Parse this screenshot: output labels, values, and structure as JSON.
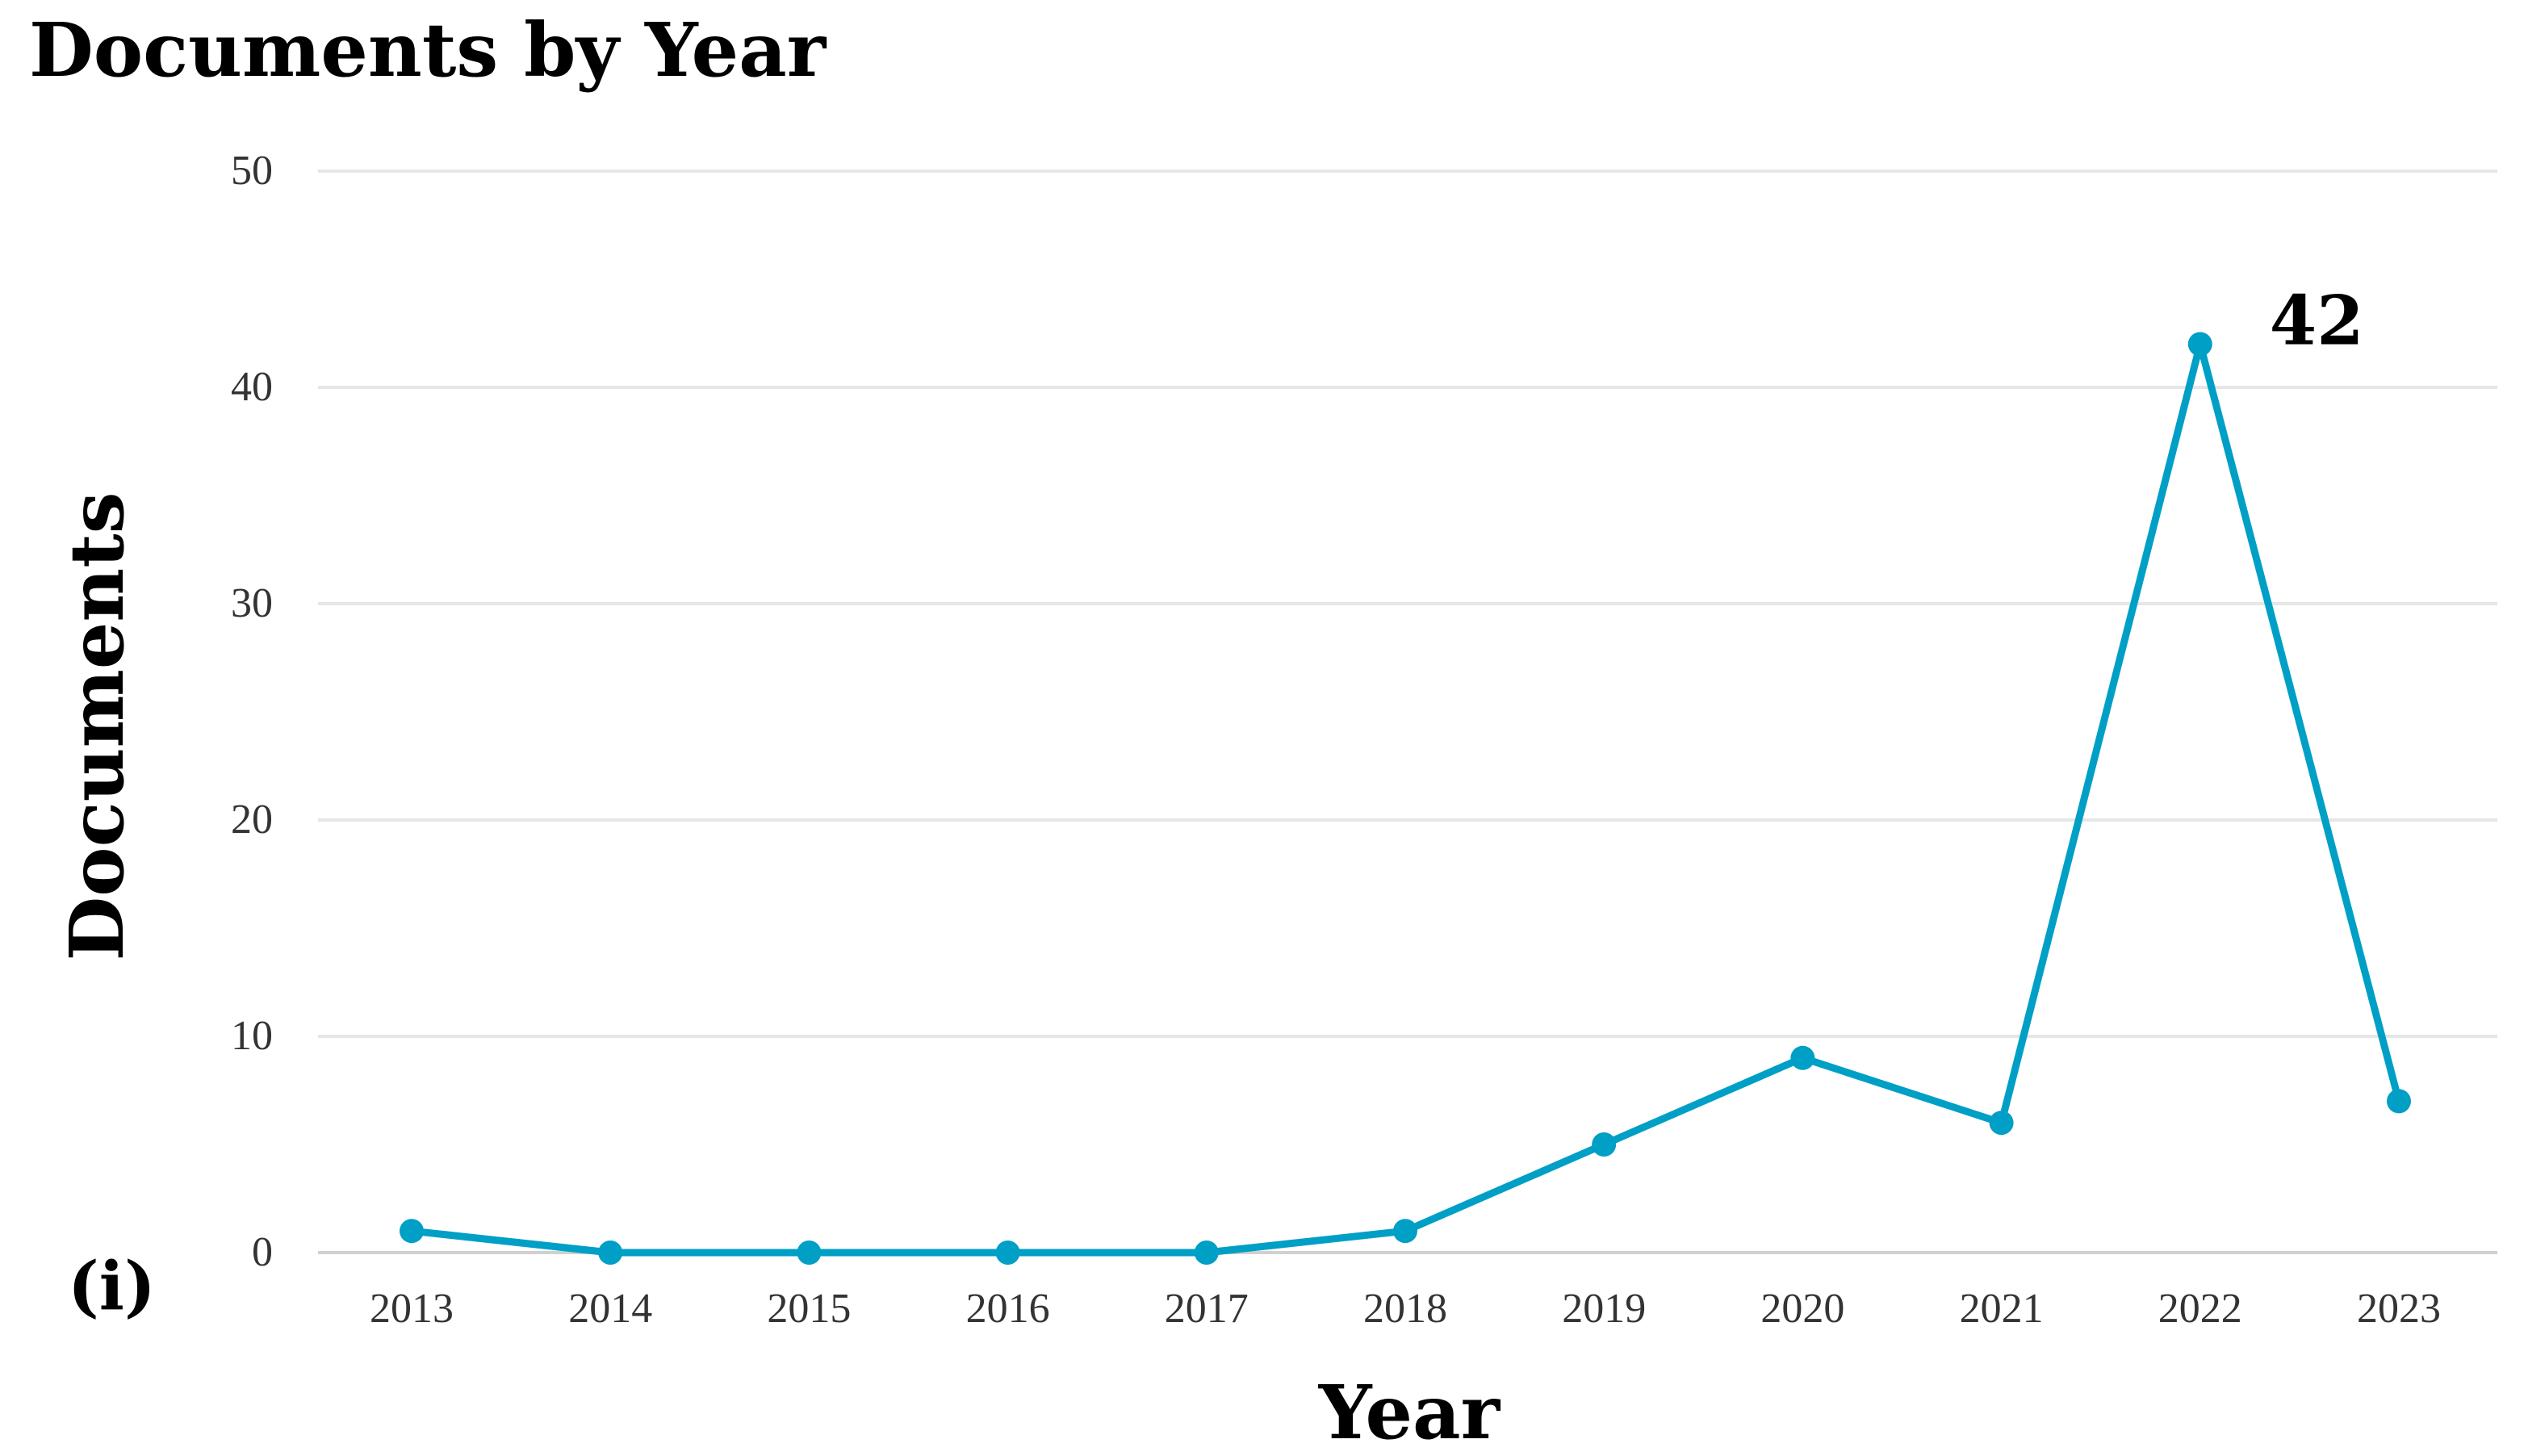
{
  "chart_data": {
    "type": "line",
    "title": "Documents by Year",
    "xlabel": "Year",
    "ylabel": "Documents",
    "panel_label": "(i)",
    "categories": [
      "2013",
      "2014",
      "2015",
      "2016",
      "2017",
      "2018",
      "2019",
      "2020",
      "2021",
      "2022",
      "2023"
    ],
    "values": [
      1,
      0,
      0,
      0,
      0,
      1,
      5,
      9,
      6,
      42,
      7
    ],
    "ylim": [
      0,
      50
    ],
    "yticks": [
      "0",
      "10",
      "20",
      "30",
      "40",
      "50"
    ],
    "grid": true,
    "annotations": [
      {
        "category": "2022",
        "text": "42"
      }
    ],
    "colors": {
      "series": "#009fc6"
    }
  }
}
